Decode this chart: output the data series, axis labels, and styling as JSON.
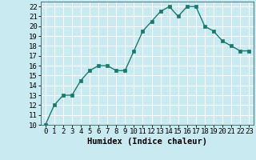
{
  "x": [
    0,
    1,
    2,
    3,
    4,
    5,
    6,
    7,
    8,
    9,
    10,
    11,
    12,
    13,
    14,
    15,
    16,
    17,
    18,
    19,
    20,
    21,
    22,
    23
  ],
  "y": [
    10,
    12,
    13,
    13,
    14.5,
    15.5,
    16,
    16,
    15.5,
    15.5,
    17.5,
    19.5,
    20.5,
    21.5,
    22,
    21,
    22,
    22,
    20,
    19.5,
    18.5,
    18,
    17.5,
    17.5
  ],
  "line_color": "#1a7a6e",
  "marker": "s",
  "marker_size": 2.5,
  "bg_color": "#c8eaf0",
  "grid_color": "#ffffff",
  "xlabel": "Humidex (Indice chaleur)",
  "xlabel_fontsize": 7.5,
  "tick_fontsize": 6.5,
  "xlim": [
    -0.5,
    23.5
  ],
  "ylim": [
    10,
    22.5
  ],
  "yticks": [
    10,
    11,
    12,
    13,
    14,
    15,
    16,
    17,
    18,
    19,
    20,
    21,
    22
  ],
  "xticks": [
    0,
    1,
    2,
    3,
    4,
    5,
    6,
    7,
    8,
    9,
    10,
    11,
    12,
    13,
    14,
    15,
    16,
    17,
    18,
    19,
    20,
    21,
    22,
    23
  ]
}
